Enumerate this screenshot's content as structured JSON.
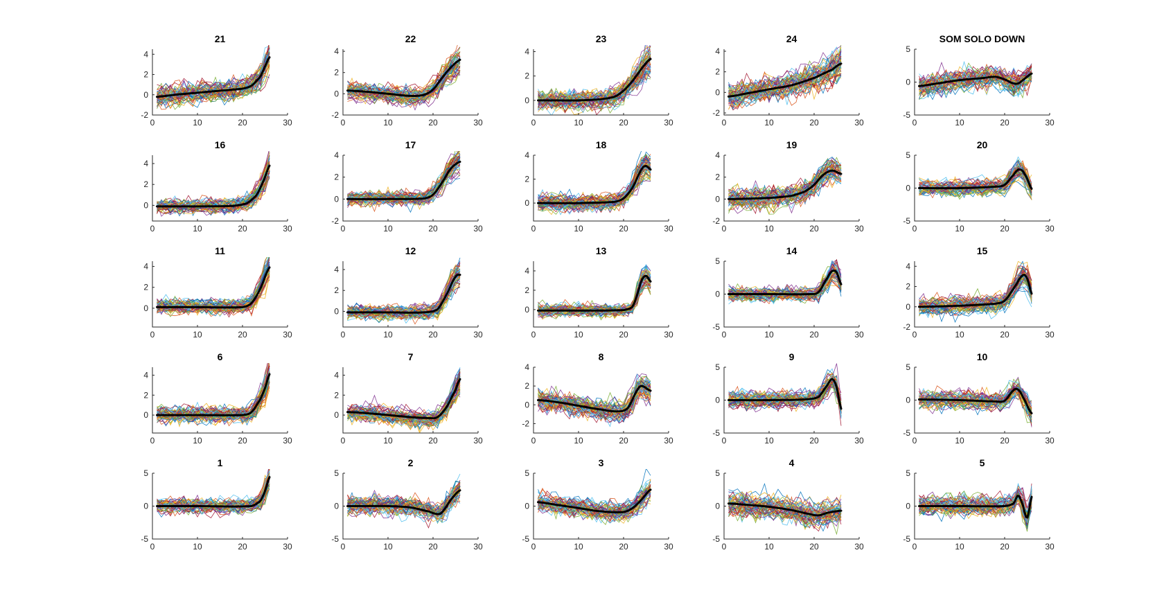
{
  "figure": {
    "colors": {
      "background": "#ffffff",
      "axis": "#262626",
      "mean_line": "#000000",
      "profile_palette": [
        "#0072bd",
        "#d95319",
        "#edb120",
        "#7e2f8e",
        "#77ac30",
        "#4dbeee",
        "#a2142f"
      ]
    }
  },
  "chart_data": [
    {
      "type": "line",
      "title": "21",
      "xlim": [
        0,
        30
      ],
      "ylim": [
        -2,
        4.5
      ],
      "xticks": [
        0,
        10,
        20,
        30
      ],
      "yticks": [
        -2,
        0,
        2,
        4
      ],
      "x": [
        1,
        26
      ],
      "spread": 0.7,
      "mean": [
        [
          1,
          -0.2
        ],
        [
          5,
          0.0
        ],
        [
          10,
          0.2
        ],
        [
          15,
          0.4
        ],
        [
          20,
          0.6
        ],
        [
          22,
          0.9
        ],
        [
          24,
          1.8
        ],
        [
          25,
          2.8
        ],
        [
          26,
          3.7
        ]
      ]
    },
    {
      "type": "line",
      "title": "22",
      "xlim": [
        0,
        30
      ],
      "ylim": [
        -2,
        4.2
      ],
      "xticks": [
        0,
        10,
        20,
        30
      ],
      "yticks": [
        -2,
        0,
        2,
        4
      ],
      "x": [
        1,
        26
      ],
      "spread": 0.6,
      "mean": [
        [
          1,
          0.3
        ],
        [
          5,
          0.2
        ],
        [
          10,
          0.0
        ],
        [
          15,
          -0.2
        ],
        [
          18,
          -0.1
        ],
        [
          20,
          0.4
        ],
        [
          22,
          1.5
        ],
        [
          24,
          2.5
        ],
        [
          26,
          3.2
        ]
      ]
    },
    {
      "type": "line",
      "title": "23",
      "xlim": [
        0,
        30
      ],
      "ylim": [
        -1.2,
        4.2
      ],
      "xticks": [
        0,
        10,
        20,
        30
      ],
      "yticks": [
        0,
        2,
        4
      ],
      "x": [
        1,
        26
      ],
      "spread": 0.6,
      "mean": [
        [
          1,
          0.0
        ],
        [
          5,
          0.0
        ],
        [
          10,
          0.0
        ],
        [
          15,
          0.1
        ],
        [
          18,
          0.3
        ],
        [
          20,
          0.8
        ],
        [
          22,
          1.6
        ],
        [
          24,
          2.6
        ],
        [
          26,
          3.4
        ]
      ]
    },
    {
      "type": "line",
      "title": "24",
      "xlim": [
        0,
        30
      ],
      "ylim": [
        -2.2,
        4.2
      ],
      "xticks": [
        0,
        10,
        20,
        30
      ],
      "yticks": [
        -2,
        0,
        2,
        4
      ],
      "x": [
        1,
        26
      ],
      "spread": 0.9,
      "mean": [
        [
          1,
          -0.4
        ],
        [
          5,
          -0.1
        ],
        [
          10,
          0.3
        ],
        [
          15,
          0.7
        ],
        [
          20,
          1.4
        ],
        [
          24,
          2.2
        ],
        [
          26,
          2.8
        ]
      ]
    },
    {
      "type": "line",
      "title": "SOM SOLO DOWN",
      "xlim": [
        0,
        30
      ],
      "ylim": [
        -5,
        5
      ],
      "xticks": [
        0,
        10,
        20,
        30
      ],
      "yticks": [
        -5,
        0,
        5
      ],
      "x": [
        1,
        26
      ],
      "spread": 1.2,
      "mean": [
        [
          1,
          -0.6
        ],
        [
          5,
          -0.2
        ],
        [
          10,
          0.3
        ],
        [
          15,
          0.6
        ],
        [
          18,
          0.8
        ],
        [
          20,
          0.4
        ],
        [
          22,
          -0.2
        ],
        [
          23,
          -0.2
        ],
        [
          24,
          0.3
        ],
        [
          26,
          1.3
        ]
      ]
    },
    {
      "type": "line",
      "title": "16",
      "xlim": [
        0,
        30
      ],
      "ylim": [
        -1.5,
        4.8
      ],
      "xticks": [
        0,
        10,
        20,
        30
      ],
      "yticks": [
        0,
        2,
        4
      ],
      "x": [
        1,
        26
      ],
      "spread": 0.5,
      "mean": [
        [
          1,
          -0.1
        ],
        [
          10,
          -0.1
        ],
        [
          18,
          -0.05
        ],
        [
          21,
          0.2
        ],
        [
          23,
          0.9
        ],
        [
          24,
          1.7
        ],
        [
          25,
          2.7
        ],
        [
          26,
          3.8
        ]
      ]
    },
    {
      "type": "line",
      "title": "17",
      "xlim": [
        0,
        30
      ],
      "ylim": [
        -2,
        4
      ],
      "xticks": [
        0,
        10,
        20,
        30
      ],
      "yticks": [
        -2,
        0,
        2,
        4
      ],
      "x": [
        1,
        26
      ],
      "spread": 0.5,
      "mean": [
        [
          1,
          0.0
        ],
        [
          10,
          0.0
        ],
        [
          18,
          0.05
        ],
        [
          20,
          0.4
        ],
        [
          22,
          1.5
        ],
        [
          24,
          2.8
        ],
        [
          26,
          3.4
        ]
      ]
    },
    {
      "type": "line",
      "title": "18",
      "xlim": [
        0,
        30
      ],
      "ylim": [
        -1.5,
        4
      ],
      "xticks": [
        0,
        10,
        20,
        30
      ],
      "yticks": [
        0,
        2,
        4
      ],
      "x": [
        1,
        26
      ],
      "spread": 0.5,
      "mean": [
        [
          1,
          0.0
        ],
        [
          10,
          0.0
        ],
        [
          18,
          0.1
        ],
        [
          20,
          0.4
        ],
        [
          22,
          1.3
        ],
        [
          24,
          2.8
        ],
        [
          25,
          3.1
        ],
        [
          26,
          2.8
        ]
      ]
    },
    {
      "type": "line",
      "title": "19",
      "xlim": [
        0,
        30
      ],
      "ylim": [
        -2,
        4
      ],
      "xticks": [
        0,
        10,
        20,
        30
      ],
      "yticks": [
        -2,
        0,
        2,
        4
      ],
      "x": [
        1,
        26
      ],
      "spread": 0.7,
      "mean": [
        [
          1,
          0.0
        ],
        [
          10,
          0.1
        ],
        [
          15,
          0.3
        ],
        [
          18,
          0.7
        ],
        [
          20,
          1.3
        ],
        [
          22,
          2.2
        ],
        [
          24,
          2.6
        ],
        [
          26,
          2.3
        ]
      ]
    },
    {
      "type": "line",
      "title": "20",
      "xlim": [
        0,
        30
      ],
      "ylim": [
        -5,
        5
      ],
      "xticks": [
        0,
        10,
        20,
        30
      ],
      "yticks": [
        -5,
        0,
        5
      ],
      "x": [
        1,
        26
      ],
      "spread": 0.8,
      "mean": [
        [
          1,
          0.0
        ],
        [
          10,
          0.0
        ],
        [
          18,
          0.2
        ],
        [
          20,
          0.5
        ],
        [
          22,
          2.0
        ],
        [
          23,
          2.8
        ],
        [
          24,
          2.6
        ],
        [
          25,
          1.4
        ],
        [
          26,
          -0.1
        ]
      ]
    },
    {
      "type": "line",
      "title": "11",
      "xlim": [
        0,
        30
      ],
      "ylim": [
        -1.8,
        4.5
      ],
      "xticks": [
        0,
        10,
        20,
        30
      ],
      "yticks": [
        0,
        2,
        4
      ],
      "x": [
        1,
        26
      ],
      "spread": 0.5,
      "mean": [
        [
          1,
          0.1
        ],
        [
          10,
          0.1
        ],
        [
          20,
          0.1
        ],
        [
          22,
          0.5
        ],
        [
          24,
          1.9
        ],
        [
          26,
          3.9
        ]
      ]
    },
    {
      "type": "line",
      "title": "12",
      "xlim": [
        0,
        30
      ],
      "ylim": [
        -1.5,
        4.8
      ],
      "xticks": [
        0,
        10,
        20,
        30
      ],
      "yticks": [
        0,
        2,
        4
      ],
      "x": [
        1,
        26
      ],
      "spread": 0.5,
      "mean": [
        [
          1,
          -0.1
        ],
        [
          10,
          -0.1
        ],
        [
          18,
          -0.1
        ],
        [
          21,
          0.2
        ],
        [
          23,
          1.6
        ],
        [
          25,
          3.3
        ],
        [
          26,
          3.5
        ]
      ]
    },
    {
      "type": "line",
      "title": "13",
      "xlim": [
        0,
        30
      ],
      "ylim": [
        -1.8,
        5
      ],
      "xticks": [
        0,
        10,
        20,
        30
      ],
      "yticks": [
        0,
        2,
        4
      ],
      "x": [
        1,
        26
      ],
      "spread": 0.5,
      "mean": [
        [
          1,
          -0.1
        ],
        [
          10,
          -0.1
        ],
        [
          20,
          -0.05
        ],
        [
          22,
          0.3
        ],
        [
          23,
          1.5
        ],
        [
          24,
          3.0
        ],
        [
          25,
          3.5
        ],
        [
          26,
          2.9
        ]
      ]
    },
    {
      "type": "line",
      "title": "14",
      "xlim": [
        0,
        30
      ],
      "ylim": [
        -5,
        5
      ],
      "xticks": [
        0,
        10,
        20,
        30
      ],
      "yticks": [
        -5,
        0,
        5
      ],
      "x": [
        1,
        26
      ],
      "spread": 0.8,
      "mean": [
        [
          1,
          0.0
        ],
        [
          10,
          0.0
        ],
        [
          19,
          0.0
        ],
        [
          21,
          0.3
        ],
        [
          23,
          2.5
        ],
        [
          24,
          3.5
        ],
        [
          25,
          3.3
        ],
        [
          26,
          1.5
        ]
      ]
    },
    {
      "type": "line",
      "title": "15",
      "xlim": [
        0,
        30
      ],
      "ylim": [
        -2,
        4.5
      ],
      "xticks": [
        0,
        10,
        20,
        30
      ],
      "yticks": [
        -2,
        0,
        2,
        4
      ],
      "x": [
        1,
        26
      ],
      "spread": 0.6,
      "mean": [
        [
          1,
          0.0
        ],
        [
          10,
          0.1
        ],
        [
          18,
          0.3
        ],
        [
          20,
          0.6
        ],
        [
          22,
          1.8
        ],
        [
          24,
          3.1
        ],
        [
          25,
          2.8
        ],
        [
          26,
          1.3
        ]
      ]
    },
    {
      "type": "line",
      "title": "6",
      "xlim": [
        0,
        30
      ],
      "ylim": [
        -1.8,
        4.8
      ],
      "xticks": [
        0,
        10,
        20,
        30
      ],
      "yticks": [
        0,
        2,
        4
      ],
      "x": [
        1,
        26
      ],
      "spread": 0.6,
      "mean": [
        [
          1,
          0.0
        ],
        [
          10,
          0.0
        ],
        [
          20,
          0.0
        ],
        [
          22,
          0.3
        ],
        [
          24,
          1.6
        ],
        [
          25,
          2.7
        ],
        [
          26,
          4.1
        ]
      ]
    },
    {
      "type": "line",
      "title": "7",
      "xlim": [
        0,
        30
      ],
      "ylim": [
        -1.8,
        4.8
      ],
      "xticks": [
        0,
        10,
        20,
        30
      ],
      "yticks": [
        0,
        2,
        4
      ],
      "x": [
        1,
        26
      ],
      "spread": 0.6,
      "mean": [
        [
          1,
          0.3
        ],
        [
          5,
          0.2
        ],
        [
          10,
          0.0
        ],
        [
          15,
          -0.2
        ],
        [
          19,
          -0.3
        ],
        [
          21,
          -0.2
        ],
        [
          23,
          0.8
        ],
        [
          25,
          2.5
        ],
        [
          26,
          3.6
        ]
      ]
    },
    {
      "type": "line",
      "title": "8",
      "xlim": [
        0,
        30
      ],
      "ylim": [
        -3,
        4
      ],
      "xticks": [
        0,
        10,
        20,
        30
      ],
      "yticks": [
        -2,
        0,
        2,
        4
      ],
      "x": [
        1,
        26
      ],
      "spread": 0.8,
      "mean": [
        [
          1,
          0.5
        ],
        [
          5,
          0.3
        ],
        [
          10,
          -0.1
        ],
        [
          15,
          -0.5
        ],
        [
          19,
          -0.7
        ],
        [
          21,
          -0.3
        ],
        [
          23,
          1.5
        ],
        [
          24,
          2.0
        ],
        [
          26,
          1.5
        ]
      ]
    },
    {
      "type": "line",
      "title": "9",
      "xlim": [
        0,
        30
      ],
      "ylim": [
        -5,
        5
      ],
      "xticks": [
        0,
        10,
        20,
        30
      ],
      "yticks": [
        -5,
        0,
        5
      ],
      "x": [
        1,
        26
      ],
      "spread": 0.9,
      "mean": [
        [
          1,
          0.0
        ],
        [
          10,
          0.0
        ],
        [
          18,
          0.1
        ],
        [
          21,
          0.5
        ],
        [
          23,
          2.3
        ],
        [
          24,
          3.2
        ],
        [
          25,
          2.0
        ],
        [
          26,
          -1.3
        ]
      ]
    },
    {
      "type": "line",
      "title": "10",
      "xlim": [
        0,
        30
      ],
      "ylim": [
        -5,
        5
      ],
      "xticks": [
        0,
        10,
        20,
        30
      ],
      "yticks": [
        -5,
        0,
        5
      ],
      "x": [
        1,
        26
      ],
      "spread": 1.0,
      "mean": [
        [
          1,
          0.1
        ],
        [
          10,
          0.0
        ],
        [
          18,
          -0.2
        ],
        [
          20,
          -0.1
        ],
        [
          22,
          1.5
        ],
        [
          23,
          1.6
        ],
        [
          24,
          0.5
        ],
        [
          26,
          -2.0
        ]
      ]
    },
    {
      "type": "line",
      "title": "1",
      "xlim": [
        0,
        30
      ],
      "ylim": [
        -5,
        5
      ],
      "xticks": [
        0,
        10,
        20,
        30
      ],
      "yticks": [
        -5,
        0,
        5
      ],
      "x": [
        1,
        26
      ],
      "spread": 0.8,
      "mean": [
        [
          1,
          0.0
        ],
        [
          10,
          0.0
        ],
        [
          22,
          0.0
        ],
        [
          24,
          0.8
        ],
        [
          25,
          2.3
        ],
        [
          26,
          4.4
        ]
      ]
    },
    {
      "type": "line",
      "title": "2",
      "xlim": [
        0,
        30
      ],
      "ylim": [
        -5,
        5
      ],
      "xticks": [
        0,
        10,
        20,
        30
      ],
      "yticks": [
        -5,
        0,
        5
      ],
      "x": [
        1,
        26
      ],
      "spread": 1.0,
      "mean": [
        [
          1,
          0.0
        ],
        [
          10,
          0.0
        ],
        [
          15,
          -0.2
        ],
        [
          19,
          -0.8
        ],
        [
          21,
          -1.2
        ],
        [
          22,
          -0.9
        ],
        [
          24,
          1.0
        ],
        [
          26,
          2.4
        ]
      ]
    },
    {
      "type": "line",
      "title": "3",
      "xlim": [
        0,
        30
      ],
      "ylim": [
        -5,
        5
      ],
      "xticks": [
        0,
        10,
        20,
        30
      ],
      "yticks": [
        -5,
        0,
        5
      ],
      "x": [
        1,
        26
      ],
      "spread": 1.0,
      "mean": [
        [
          1,
          0.6
        ],
        [
          5,
          0.2
        ],
        [
          10,
          -0.3
        ],
        [
          15,
          -0.8
        ],
        [
          20,
          -0.9
        ],
        [
          22,
          -0.3
        ],
        [
          24,
          1.0
        ],
        [
          26,
          2.5
        ]
      ]
    },
    {
      "type": "line",
      "title": "4",
      "xlim": [
        0,
        30
      ],
      "ylim": [
        -5,
        5
      ],
      "xticks": [
        0,
        10,
        20,
        30
      ],
      "yticks": [
        -5,
        0,
        5
      ],
      "x": [
        1,
        26
      ],
      "spread": 1.2,
      "mean": [
        [
          1,
          0.4
        ],
        [
          5,
          0.2
        ],
        [
          10,
          -0.1
        ],
        [
          15,
          -0.6
        ],
        [
          19,
          -1.2
        ],
        [
          21,
          -1.4
        ],
        [
          23,
          -1.0
        ],
        [
          26,
          -0.7
        ]
      ]
    },
    {
      "type": "line",
      "title": "5",
      "xlim": [
        0,
        30
      ],
      "ylim": [
        -5,
        5
      ],
      "xticks": [
        0,
        10,
        20,
        30
      ],
      "yticks": [
        -5,
        0,
        5
      ],
      "x": [
        1,
        26
      ],
      "spread": 1.0,
      "mean": [
        [
          1,
          0.0
        ],
        [
          10,
          0.0
        ],
        [
          20,
          0.0
        ],
        [
          22,
          0.4
        ],
        [
          23,
          1.6
        ],
        [
          24,
          0.2
        ],
        [
          25,
          -1.8
        ],
        [
          26,
          1.4
        ]
      ]
    }
  ]
}
